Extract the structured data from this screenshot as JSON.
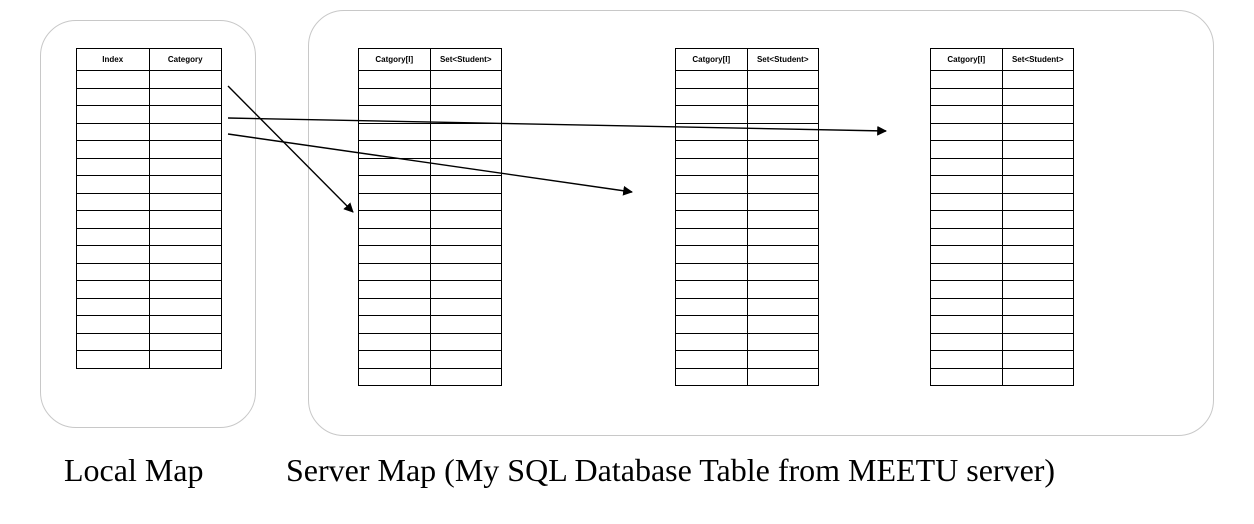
{
  "local_map": {
    "caption": "Local Map",
    "table": {
      "columns": [
        "Index",
        "Category"
      ],
      "row_count": 17
    }
  },
  "server_map": {
    "caption": "Server Map (My SQL Database Table from MEETU server)",
    "tables": [
      {
        "columns": [
          "Catgory[I]",
          "Set<Student>"
        ],
        "row_count": 18
      },
      {
        "columns": [
          "Catgory[I]",
          "Set<Student>"
        ],
        "row_count": 18
      },
      {
        "columns": [
          "Catgory[I]",
          "Set<Student>"
        ],
        "row_count": 18
      }
    ]
  },
  "arrows": [
    {
      "from": "local-map-table",
      "to": "server-table-1"
    },
    {
      "from": "local-map-table",
      "to": "server-table-2"
    },
    {
      "from": "local-map-table",
      "to": "server-table-3"
    }
  ],
  "colors": {
    "line": "#000000",
    "group_border": "#c8c8c8",
    "background": "#ffffff"
  }
}
